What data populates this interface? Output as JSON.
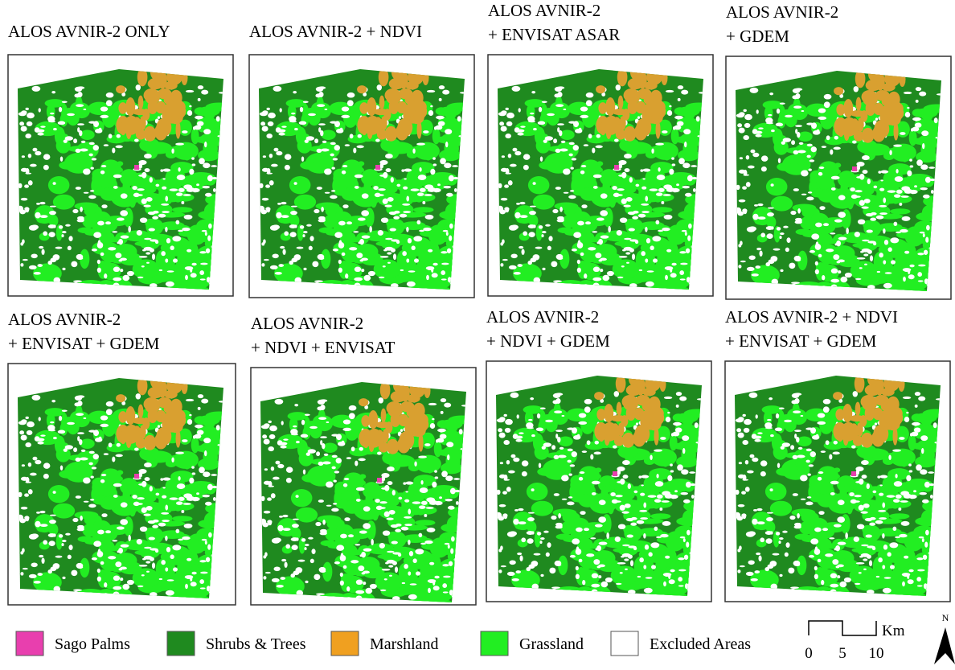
{
  "panels": [
    {
      "title": [
        "ALOS AVNIR-2 ONLY"
      ]
    },
    {
      "title": [
        "ALOS AVNIR-2 + NDVI"
      ]
    },
    {
      "title": [
        "ALOS AVNIR-2",
        "+ ENVISAT ASAR"
      ]
    },
    {
      "title": [
        "ALOS AVNIR-2",
        "+  GDEM"
      ]
    },
    {
      "title": [
        "ALOS AVNIR-2",
        "+ ENVISAT + GDEM"
      ]
    },
    {
      "title": [
        "ALOS AVNIR-2",
        "+ NDVI + ENVISAT"
      ]
    },
    {
      "title": [
        "ALOS AVNIR-2",
        "+ NDVI + GDEM"
      ]
    },
    {
      "title": [
        "ALOS AVNIR-2 + NDVI",
        "+ ENVISAT + GDEM"
      ]
    }
  ],
  "legend": [
    {
      "label": "Sago Palms",
      "color": "#e83fae"
    },
    {
      "label": "Shrubs & Trees",
      "color": "#1f8a1f"
    },
    {
      "label": "Marshland",
      "color": "#f0a020"
    },
    {
      "label": "Grassland",
      "color": "#22ee22"
    },
    {
      "label": "Excluded Areas",
      "color": "#ffffff"
    }
  ],
  "scale_bar": {
    "labels": [
      "0",
      "5",
      "10"
    ],
    "unit": "Km"
  },
  "north": "N"
}
